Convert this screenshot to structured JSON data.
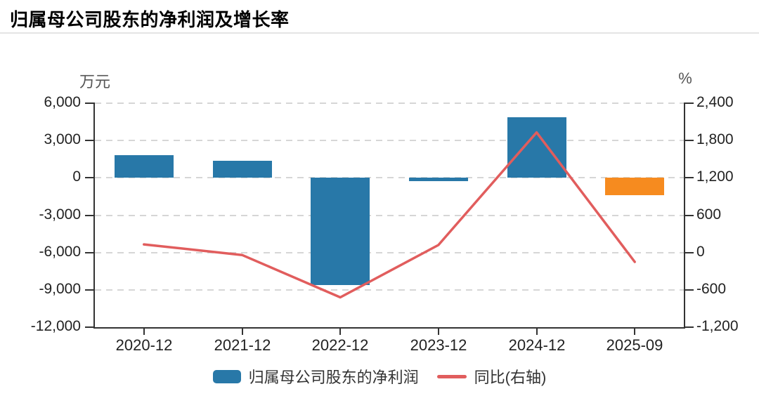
{
  "title": "归属母公司股东的净利润及增长率",
  "legend": {
    "bar_label": "归属母公司股东的净利润",
    "line_label": "同比(右轴)"
  },
  "colors": {
    "bar": "#2878a8",
    "bar_last": "#f68b1f",
    "line": "#e15d5d",
    "axis": "#333333",
    "grid": "#d6d6d6",
    "tick_text": "#222222",
    "title_text": "#000000"
  },
  "chart_data": {
    "type": "bar",
    "subtype": "combo-bar-line-dual-axis",
    "title": "归属母公司股东的净利润及增长率",
    "categories": [
      "2020-12",
      "2021-12",
      "2022-12",
      "2023-12",
      "2024-12",
      "2025-09"
    ],
    "series": [
      {
        "name": "归属母公司股东的净利润",
        "type": "bar",
        "axis": "left",
        "unit": "万元",
        "values": [
          1800,
          1350,
          -8600,
          -280,
          4850,
          -1400
        ],
        "bar_colors": [
          "#2878a8",
          "#2878a8",
          "#2878a8",
          "#2878a8",
          "#2878a8",
          "#f68b1f"
        ]
      },
      {
        "name": "同比(右轴)",
        "type": "line",
        "axis": "right",
        "unit": "%",
        "values": [
          130,
          -40,
          -720,
          120,
          1930,
          -150
        ],
        "color": "#e15d5d"
      }
    ],
    "left_axis": {
      "name": "万元",
      "max": 6000,
      "min": -12000,
      "tick_labels": [
        "6,000",
        "3,000",
        "0",
        "-3,000",
        "-6,000",
        "-9,000",
        "-12,000"
      ]
    },
    "right_axis": {
      "name": "%",
      "max": 2400,
      "min": -1200,
      "tick_labels": [
        "2,400",
        "1,800",
        "1,200",
        "600",
        "0",
        "-600",
        "-1,200"
      ]
    },
    "grid": "horizontal-dashed",
    "legend_position": "bottom-center"
  }
}
